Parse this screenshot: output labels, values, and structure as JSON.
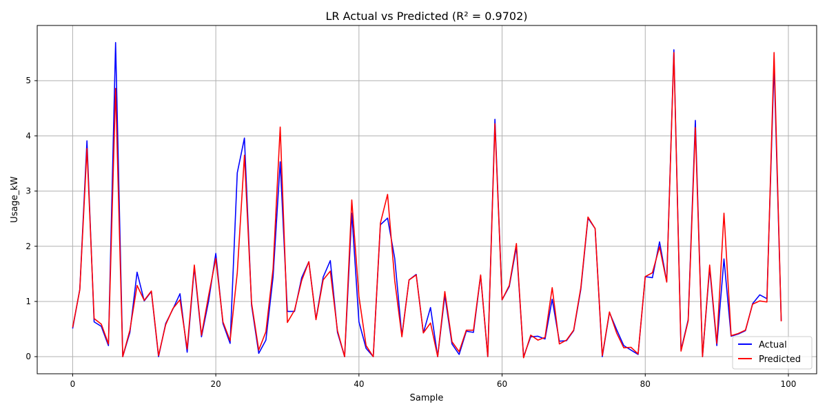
{
  "chart_data": {
    "type": "line",
    "title": "LR Actual vs Predicted (R² = 0.9702)",
    "xlabel": "Sample",
    "ylabel": "Usage_kW",
    "xlim": [
      -4.95,
      103.95
    ],
    "ylim": [
      -0.31,
      6.0
    ],
    "xticks": [
      0,
      20,
      40,
      60,
      80,
      100
    ],
    "yticks": [
      0,
      1,
      2,
      3,
      4,
      5
    ],
    "grid": true,
    "legend_position": "lower-right",
    "series": [
      {
        "name": "Actual",
        "color": "#0000ff",
        "values": [
          0.51,
          1.22,
          3.91,
          0.63,
          0.55,
          0.2,
          5.69,
          0.0,
          0.44,
          1.53,
          1.01,
          1.18,
          0.0,
          0.6,
          0.86,
          1.14,
          0.08,
          1.62,
          0.36,
          1.01,
          1.87,
          0.6,
          0.24,
          3.33,
          3.96,
          0.93,
          0.06,
          0.3,
          1.44,
          3.53,
          0.82,
          0.82,
          1.43,
          1.72,
          0.68,
          1.44,
          1.74,
          0.44,
          0.0,
          2.6,
          0.63,
          0.15,
          0.0,
          2.39,
          2.51,
          1.78,
          0.38,
          1.39,
          1.49,
          0.43,
          0.89,
          0.0,
          1.11,
          0.23,
          0.04,
          0.46,
          0.44,
          1.47,
          0.0,
          4.3,
          1.03,
          1.27,
          1.99,
          0.0,
          0.36,
          0.37,
          0.32,
          1.04,
          0.28,
          0.29,
          0.47,
          1.22,
          2.51,
          2.32,
          0.0,
          0.8,
          0.49,
          0.2,
          0.12,
          0.04,
          1.45,
          1.43,
          2.08,
          1.36,
          5.56,
          0.12,
          0.67,
          4.28,
          0.0,
          1.61,
          0.2,
          1.77,
          0.37,
          0.41,
          0.47,
          0.96,
          1.12,
          1.05,
          5.3,
          0.65
        ]
      },
      {
        "name": "Predicted",
        "color": "#ff0000",
        "values": [
          0.53,
          1.21,
          3.77,
          0.69,
          0.59,
          0.23,
          4.86,
          0.0,
          0.48,
          1.29,
          1.02,
          1.19,
          0.02,
          0.58,
          0.87,
          1.03,
          0.14,
          1.66,
          0.39,
          1.11,
          1.78,
          0.63,
          0.29,
          1.52,
          3.65,
          0.97,
          0.12,
          0.45,
          1.59,
          4.16,
          0.62,
          0.84,
          1.38,
          1.72,
          0.67,
          1.39,
          1.55,
          0.47,
          0.0,
          2.84,
          1.09,
          0.2,
          0.0,
          2.42,
          2.94,
          1.38,
          0.36,
          1.39,
          1.48,
          0.43,
          0.61,
          0.0,
          1.18,
          0.27,
          0.09,
          0.48,
          0.48,
          1.48,
          0.0,
          4.22,
          1.03,
          1.29,
          2.05,
          -0.02,
          0.39,
          0.3,
          0.35,
          1.25,
          0.23,
          0.3,
          0.48,
          1.25,
          2.53,
          2.32,
          0.02,
          0.81,
          0.43,
          0.16,
          0.17,
          0.05,
          1.45,
          1.52,
          1.99,
          1.35,
          5.51,
          0.1,
          0.65,
          4.15,
          0.0,
          1.66,
          0.24,
          2.6,
          0.38,
          0.42,
          0.48,
          0.95,
          1.01,
          0.99,
          5.51,
          0.64
        ]
      }
    ]
  }
}
